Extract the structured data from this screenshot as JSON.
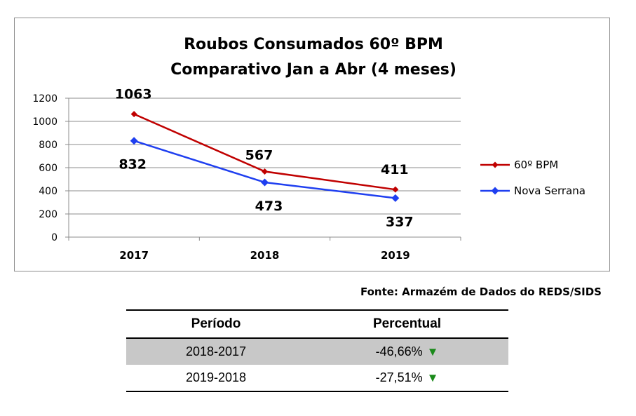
{
  "chart_data": {
    "type": "line",
    "title_lines": [
      "Roubos Consumados 60º BPM",
      "Comparativo Jan a Abr (4 meses)"
    ],
    "categories": [
      "2017",
      "2018",
      "2019"
    ],
    "ylim": [
      0,
      1200
    ],
    "yticks": [
      0,
      200,
      400,
      600,
      800,
      1000,
      1200
    ],
    "grid": true,
    "legend_position": "right",
    "series": [
      {
        "name": "60º BPM",
        "values": [
          1063,
          567,
          411
        ],
        "color": "#c00000"
      },
      {
        "name": "Nova Serrana",
        "values": [
          832,
          473,
          337
        ],
        "color": "#1f3ff0"
      }
    ]
  },
  "source_text": "Fonte: Armazém de Dados do REDS/SIDS",
  "table": {
    "headers": [
      "Período",
      "Percentual"
    ],
    "rows": [
      {
        "period": "2018-2017",
        "percent": "-46,66%",
        "arrow": "▼"
      },
      {
        "period": "2019-2018",
        "percent": "-27,51%",
        "arrow": "▼"
      }
    ]
  }
}
